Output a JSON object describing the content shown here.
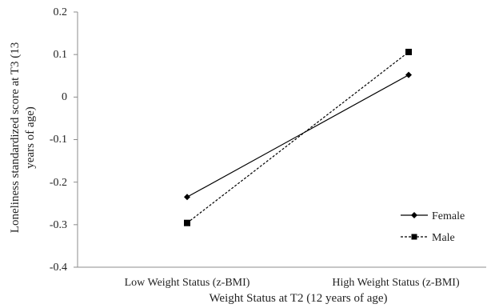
{
  "chart_data": {
    "type": "line",
    "title": "",
    "xlabel": "Weight Status at T2 (12 years of age)",
    "ylabel_lines": [
      "Loneliness standardized score  at T3   (13",
      "years of age)"
    ],
    "categories": [
      "Low Weight Status (z-BMI)",
      "High Weight Status (z-BMI)"
    ],
    "ylim": [
      -0.4,
      0.2
    ],
    "yticks": [
      0.2,
      0.1,
      0,
      -0.1,
      -0.2,
      -0.3,
      -0.4
    ],
    "ytick_labels": [
      "0.2",
      "0.1",
      "0",
      "-0.1",
      "-0.2",
      "-0.3",
      "-0.4"
    ],
    "grid": false,
    "legend": "right",
    "series": [
      {
        "name": "Female",
        "values": [
          -0.235,
          0.052
        ],
        "marker": "diamond",
        "line": "solid",
        "color": "#000000"
      },
      {
        "name": "Male",
        "values": [
          -0.296,
          0.106
        ],
        "marker": "square",
        "line": "dashed",
        "color": "#000000"
      }
    ]
  }
}
